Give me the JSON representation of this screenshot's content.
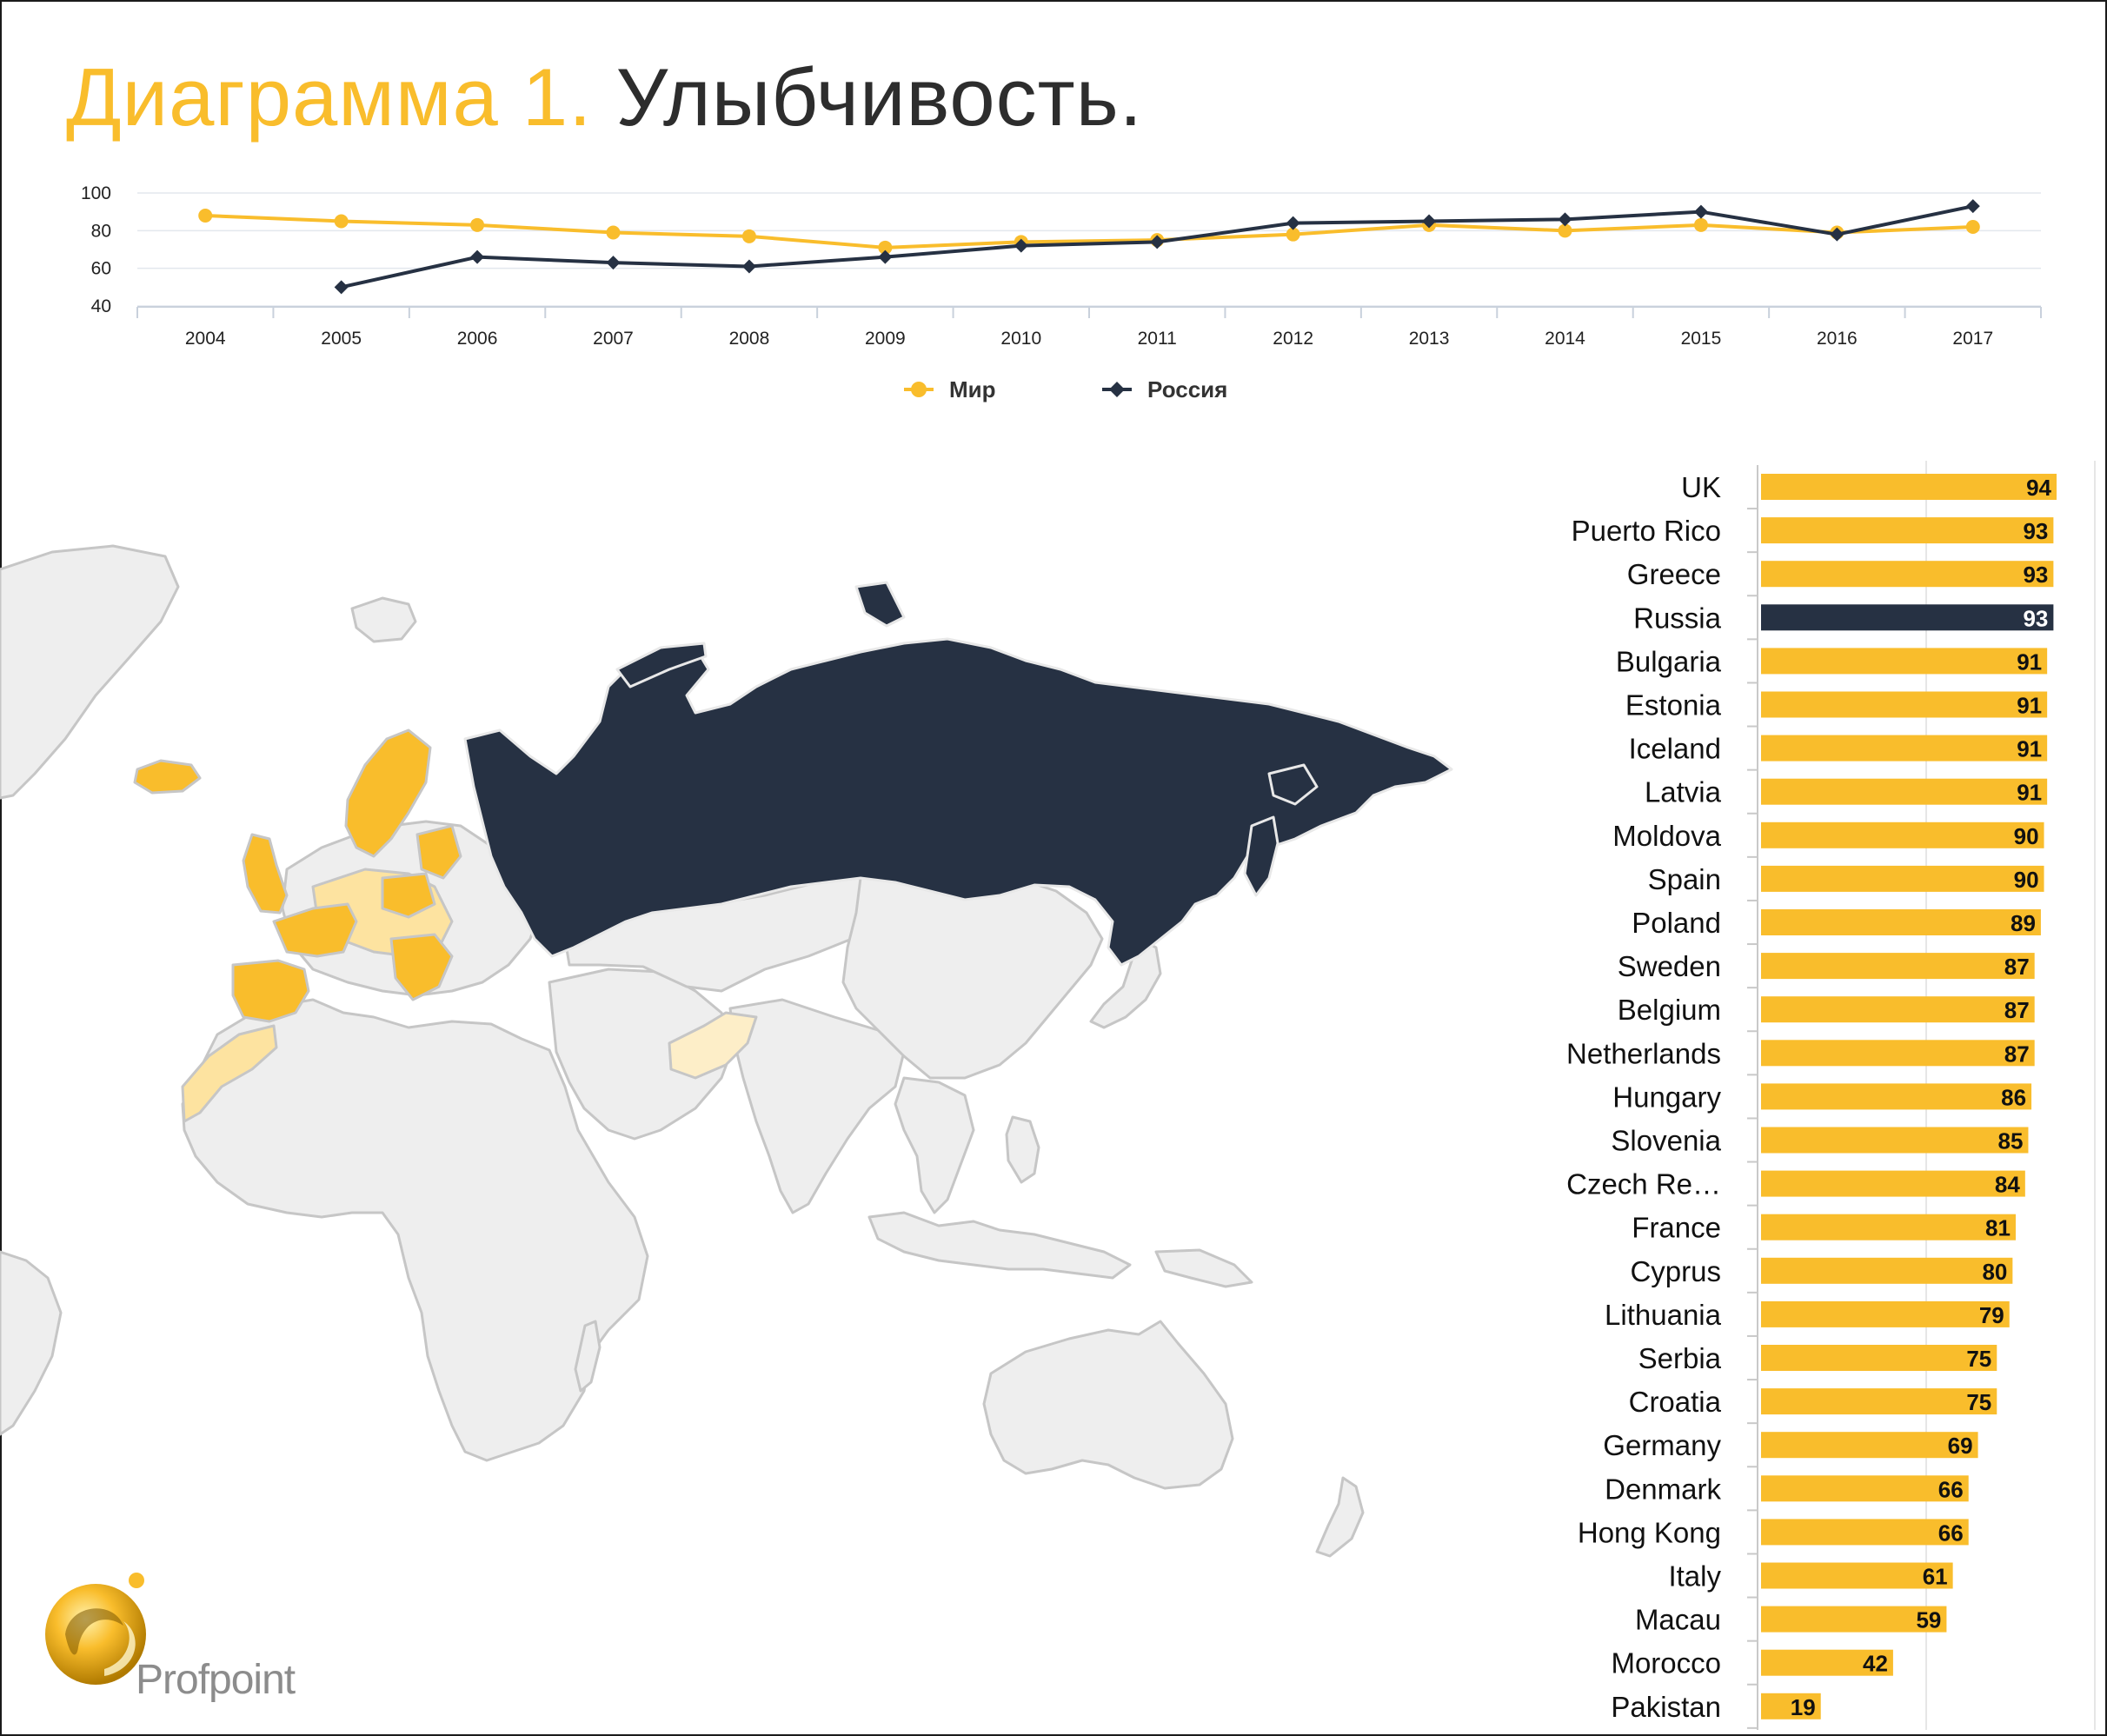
{
  "title": {
    "part1": "Диаграмма 1.",
    "part2": "Улыбчивость."
  },
  "colors": {
    "world": "#f9bd2c",
    "russia": "#263143",
    "map_land": "#eeeeee",
    "map_border": "#c6c6c6",
    "map_light": "#fde3a0",
    "map_pale": "#fdeec8"
  },
  "logo": {
    "text": "Profpoint",
    "icon": "profpoint-logo-icon"
  },
  "chart_data": [
    {
      "type": "line",
      "title": "",
      "x": [
        "2004",
        "2005",
        "2006",
        "2007",
        "2008",
        "2009",
        "2010",
        "2011",
        "2012",
        "2013",
        "2014",
        "2015",
        "2016",
        "2017"
      ],
      "y_ticks": [
        40,
        60,
        80,
        100
      ],
      "ylim": [
        40,
        100
      ],
      "grid": true,
      "legend": "bottom",
      "series": [
        {
          "name": "Мир",
          "color": "#f9bd2c",
          "marker": "circle",
          "values": [
            88,
            85,
            83,
            79,
            77,
            71,
            74,
            75,
            78,
            83,
            80,
            83,
            79,
            82
          ]
        },
        {
          "name": "Россия",
          "color": "#263143",
          "marker": "diamond",
          "values": [
            null,
            50,
            66,
            63,
            61,
            66,
            72,
            74,
            84,
            85,
            86,
            90,
            78,
            93
          ]
        }
      ]
    },
    {
      "type": "bar",
      "orientation": "horizontal",
      "title": "",
      "categories": [
        "UK",
        "Puerto Rico",
        "Greece",
        "Russia",
        "Bulgaria",
        "Estonia",
        "Iceland",
        "Latvia",
        "Moldova",
        "Spain",
        "Poland",
        "Sweden",
        "Belgium",
        "Netherlands",
        "Hungary",
        "Slovenia",
        "Czech Re…",
        "France",
        "Cyprus",
        "Lithuania",
        "Serbia",
        "Croatia",
        "Germany",
        "Denmark",
        "Hong Kong",
        "Italy",
        "Macau",
        "Morocco",
        "Pakistan"
      ],
      "values": [
        94,
        93,
        93,
        93,
        91,
        91,
        91,
        91,
        90,
        90,
        89,
        87,
        87,
        87,
        86,
        85,
        84,
        81,
        80,
        79,
        75,
        75,
        69,
        66,
        66,
        61,
        59,
        42,
        19
      ],
      "highlight": "Russia",
      "xlim": [
        0,
        94
      ],
      "grid": true
    }
  ]
}
